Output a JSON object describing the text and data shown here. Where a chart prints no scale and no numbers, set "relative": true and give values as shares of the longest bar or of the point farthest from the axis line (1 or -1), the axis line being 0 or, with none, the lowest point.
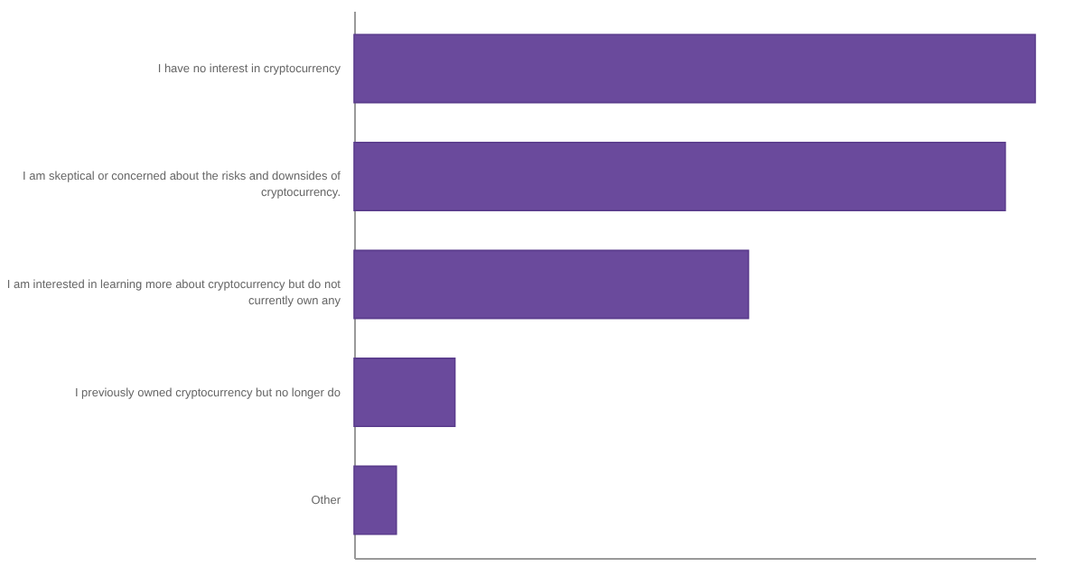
{
  "chart_data": {
    "type": "bar",
    "orientation": "horizontal",
    "relative": true,
    "color": "#6a4a9c",
    "categories": [
      "I have no interest in cryptocurrency",
      "I am skeptical or concerned about the risks and downsides of cryptocurrency.",
      "I am interested in learning more about cryptocurrency but do not currently own any",
      "I previously owned cryptocurrency but no longer do",
      "Other"
    ],
    "values": [
      1,
      0.956,
      0.579,
      0.148,
      0.062
    ],
    "grid": false
  }
}
